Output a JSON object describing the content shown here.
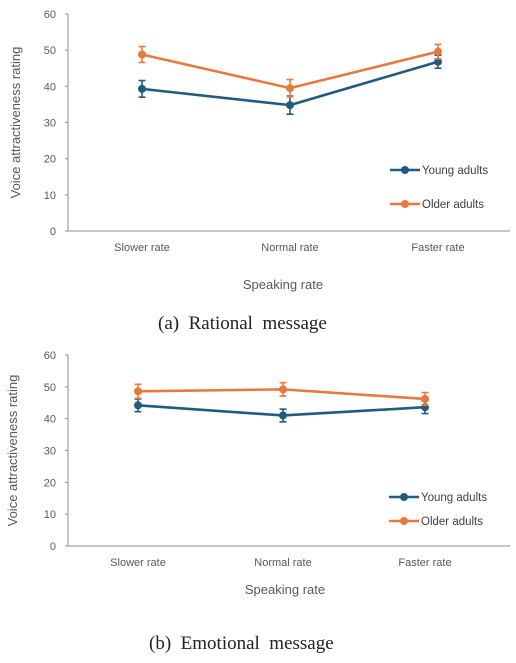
{
  "chart_data": [
    {
      "type": "line",
      "caption": "(a)  Rational  message",
      "categories": [
        "Slower rate",
        "Normal rate",
        "Faster rate"
      ],
      "xlabel": "Speaking rate",
      "ylabel": "Voice attractiveness rating",
      "ylim": [
        0,
        60
      ],
      "yticks": [
        0,
        10,
        20,
        30,
        40,
        50,
        60
      ],
      "grid": false,
      "legend_position": "lower-right",
      "series": [
        {
          "name": "Young adults",
          "color": "#1f5c80",
          "values": [
            39.3,
            34.8,
            46.8
          ],
          "errors": [
            2.3,
            2.5,
            1.8
          ]
        },
        {
          "name": "Older adults",
          "color": "#e8793c",
          "values": [
            48.8,
            39.5,
            49.6
          ],
          "errors": [
            2.2,
            2.4,
            2.0
          ]
        }
      ]
    },
    {
      "type": "line",
      "caption": "(b)  Emotional  message",
      "categories": [
        "Slower rate",
        "Normal rate",
        "Faster rate"
      ],
      "xlabel": "Speaking rate",
      "ylabel": "Voice attractiveness rating",
      "ylim": [
        0,
        60
      ],
      "yticks": [
        0,
        10,
        20,
        30,
        40,
        50,
        60
      ],
      "grid": false,
      "legend_position": "lower-right",
      "series": [
        {
          "name": "Young adults",
          "color": "#1f5c80",
          "values": [
            44.2,
            41.0,
            43.6
          ],
          "errors": [
            2.0,
            2.0,
            2.0
          ]
        },
        {
          "name": "Older adults",
          "color": "#e8793c",
          "values": [
            48.6,
            49.2,
            46.2
          ],
          "errors": [
            2.2,
            2.1,
            2.0
          ]
        }
      ]
    }
  ]
}
